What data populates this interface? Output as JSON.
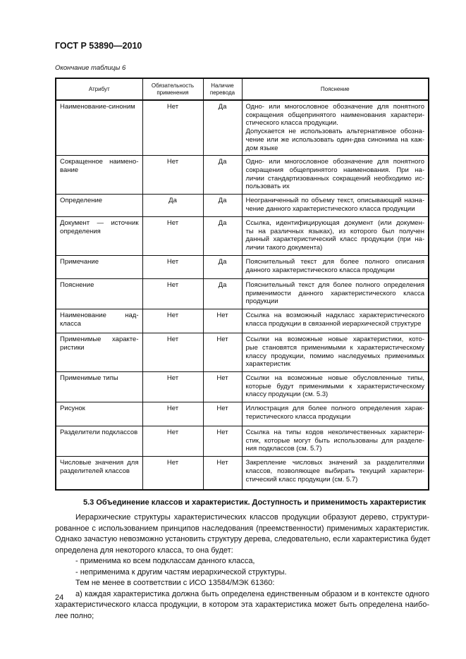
{
  "header": {
    "doc_id": "ГОСТ Р 53890—2010"
  },
  "table": {
    "caption": "Окончание таблицы 6",
    "columns": [
      "Атрибут",
      "Обязательность применения",
      "Наличие перевода",
      "Пояснение"
    ],
    "rows": [
      {
        "attr": [
          "Наименование-синоним"
        ],
        "req": "Нет",
        "trans": "Да",
        "desc": [
          "Одно- или многословное обозначение для понятного",
          "сокращения общепринятого наименования характери-",
          "стического класса продукции.",
          "Допускается не использовать альтернативное обозна-",
          "чение или же использовать один-два синонима на каж-",
          "дом языке"
        ],
        "breaks": [
          2
        ]
      },
      {
        "attr": [
          "Сокращенное наимено-",
          "вание"
        ],
        "req": "Нет",
        "trans": "Да",
        "desc": [
          "Одно- или многословное обозначение для понятного",
          "сокращения общепринятого наименования. При на-",
          "личии стандартизованных сокращений необходимо ис-",
          "пользовать их"
        ]
      },
      {
        "attr": [
          "Определение"
        ],
        "req": "Да",
        "trans": "Да",
        "desc": [
          "Неограниченный по объему текст, описывающий назна-",
          "чение данного характеристического класса продукции"
        ]
      },
      {
        "attr": [
          "Документ — источник",
          "определения"
        ],
        "req": "Нет",
        "trans": "Да",
        "desc": [
          "Ссылка, идентифицирующая документ (или докумен-",
          "ты на различных языках), из которого был получен",
          "данный характеристический класс продукции (при на-",
          "личии такого документа)"
        ]
      },
      {
        "attr": [
          "Примечание"
        ],
        "req": "Нет",
        "trans": "Да",
        "desc": [
          "Пояснительный текст для более полного описания",
          "данного характеристического класса продукции"
        ]
      },
      {
        "attr": [
          "Пояснение"
        ],
        "req": "Нет",
        "trans": "Да",
        "desc": [
          "Пояснительный текст для более полного определения",
          "применимости данного характеристического класса",
          "продукции"
        ]
      },
      {
        "attr": [
          "Наименование над-",
          "класса"
        ],
        "req": "Нет",
        "trans": "Нет",
        "desc": [
          "Ссылка на возможный надкласс характеристического",
          "класса продукции в связанной иерархической структуре"
        ]
      },
      {
        "attr": [
          "Применимые характе-",
          "ристики"
        ],
        "req": "Нет",
        "trans": "Нет",
        "desc": [
          "Ссылки на возможные новые характеристики, кото-",
          "рые становятся применимыми к характеристическому",
          "классу продукции, помимо наследуемых применимых",
          "характеристик"
        ]
      },
      {
        "attr": [
          "Применимые типы"
        ],
        "req": "Нет",
        "trans": "Нет",
        "desc": [
          "Ссылки на возможные новые обусловленные типы,",
          "которые будут применимыми к характеристическому",
          "классу продукции (см. 5.3)"
        ]
      },
      {
        "attr": [
          "Рисунок"
        ],
        "req": "Нет",
        "trans": "Нет",
        "desc": [
          "Иллюстрация для более полного определения харак-",
          "теристического класса продукции"
        ]
      },
      {
        "attr": [
          "Разделители подклассов"
        ],
        "req": "Нет",
        "trans": "Нет",
        "desc": [
          "Ссылка на типы кодов неколичественных характери-",
          "стик, которые могут быть использованы для разделе-",
          "ния подклассов (см. 5.7)"
        ]
      },
      {
        "attr": [
          "Числовые значения для",
          "разделителей классов"
        ],
        "req": "Нет",
        "trans": "Нет",
        "desc": [
          "Закрепление числовых значений за разделителями",
          "классов, позволяющее выбирать текущий характери-",
          "стический класс продукции (см. 5.7)"
        ]
      }
    ]
  },
  "section": {
    "title": "5.3 Объединение классов и характеристик. Доступность и применимость характеристик",
    "lines": [
      {
        "t": "Иерархические структуры характеристических классов продукции образуют дерево, структури-",
        "ind": true
      },
      {
        "t": "рованное с использованием принципов наследования (преемственности) применимых характеристик."
      },
      {
        "t": "Однако зачастую невозможно установить структуру дерева, следовательно, если характеристика будет"
      },
      {
        "t": "определена для некоторого класса, то она будет:",
        "last": true
      },
      {
        "t": "- применима ко всем подклассам данного класса,",
        "ind": true,
        "last": true
      },
      {
        "t": "- неприменима к другим частям иерархической структуры.",
        "ind": true,
        "last": true
      },
      {
        "t": "Тем не менее в соответствии с ИСО 13584/МЭК 61360:",
        "ind": true,
        "last": true
      },
      {
        "t": "а) каждая характеристика должна быть определена единственным образом и в контексте одного",
        "ind": true
      },
      {
        "t": "характеристического класса продукции, в котором эта характеристика может быть определена наибо-"
      },
      {
        "t": "лее полно;",
        "last": true
      }
    ]
  },
  "page_number": "24"
}
